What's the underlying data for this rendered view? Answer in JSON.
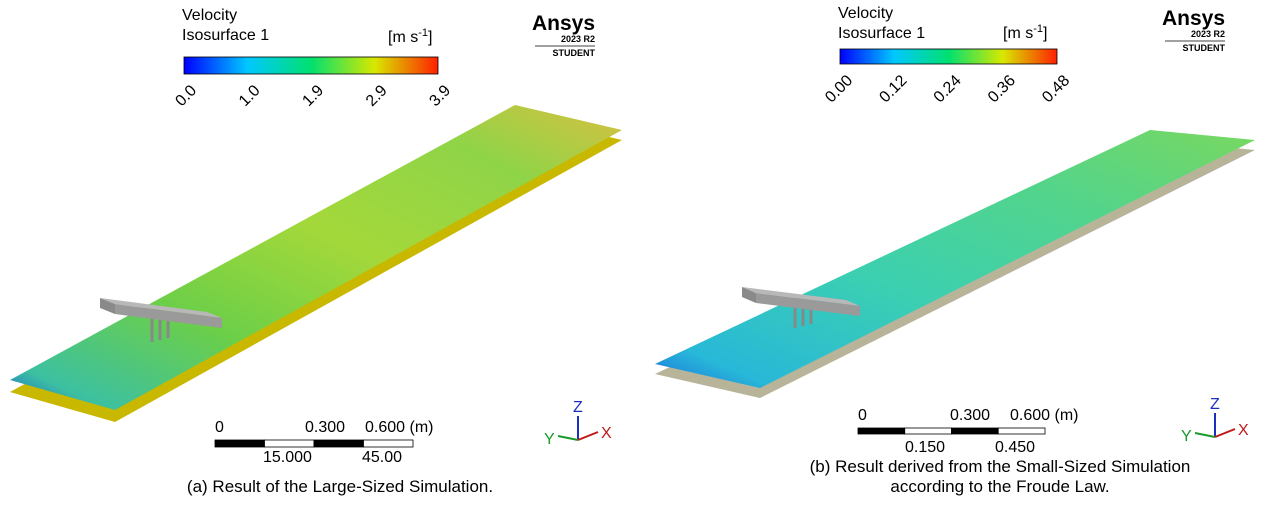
{
  "panels": [
    {
      "colorbar": {
        "title": [
          "Velocity",
          "Isosurface 1"
        ],
        "unit": {
          "base": "[m s",
          "exp": "-1",
          "close": "]"
        },
        "ticks": [
          "0.0",
          "1.0",
          "1.9",
          "2.9",
          "3.9"
        ]
      },
      "logo": {
        "name": "Ansys",
        "version": "2023 R2",
        "edition": "STUDENT"
      },
      "scale_bar": {
        "top": [
          "0",
          "0.300",
          "0.600 (m)"
        ],
        "bottom": [
          "15.000",
          "45.00"
        ]
      },
      "axes": {
        "z": "Z",
        "y": "Y",
        "x": "X"
      },
      "caption": [
        "(a) Result of the Large-Sized Simulation."
      ]
    },
    {
      "colorbar": {
        "title": [
          "Velocity",
          "Isosurface 1"
        ],
        "unit": {
          "base": "[m s",
          "exp": "-1",
          "close": "]"
        },
        "ticks": [
          "0.00",
          "0.12",
          "0.24",
          "0.36",
          "0.48"
        ]
      },
      "logo": {
        "name": "Ansys",
        "version": "2023 R2",
        "edition": "STUDENT"
      },
      "scale_bar": {
        "top": [
          "0",
          "0.300",
          "0.600 (m)"
        ],
        "bottom": [
          "0.150",
          "0.450"
        ]
      },
      "axes": {
        "z": "Z",
        "y": "Y",
        "x": "X"
      },
      "caption": [
        "(b) Result derived from the Small-Sized Simulation",
        "according to the Froude Law."
      ]
    }
  ]
}
